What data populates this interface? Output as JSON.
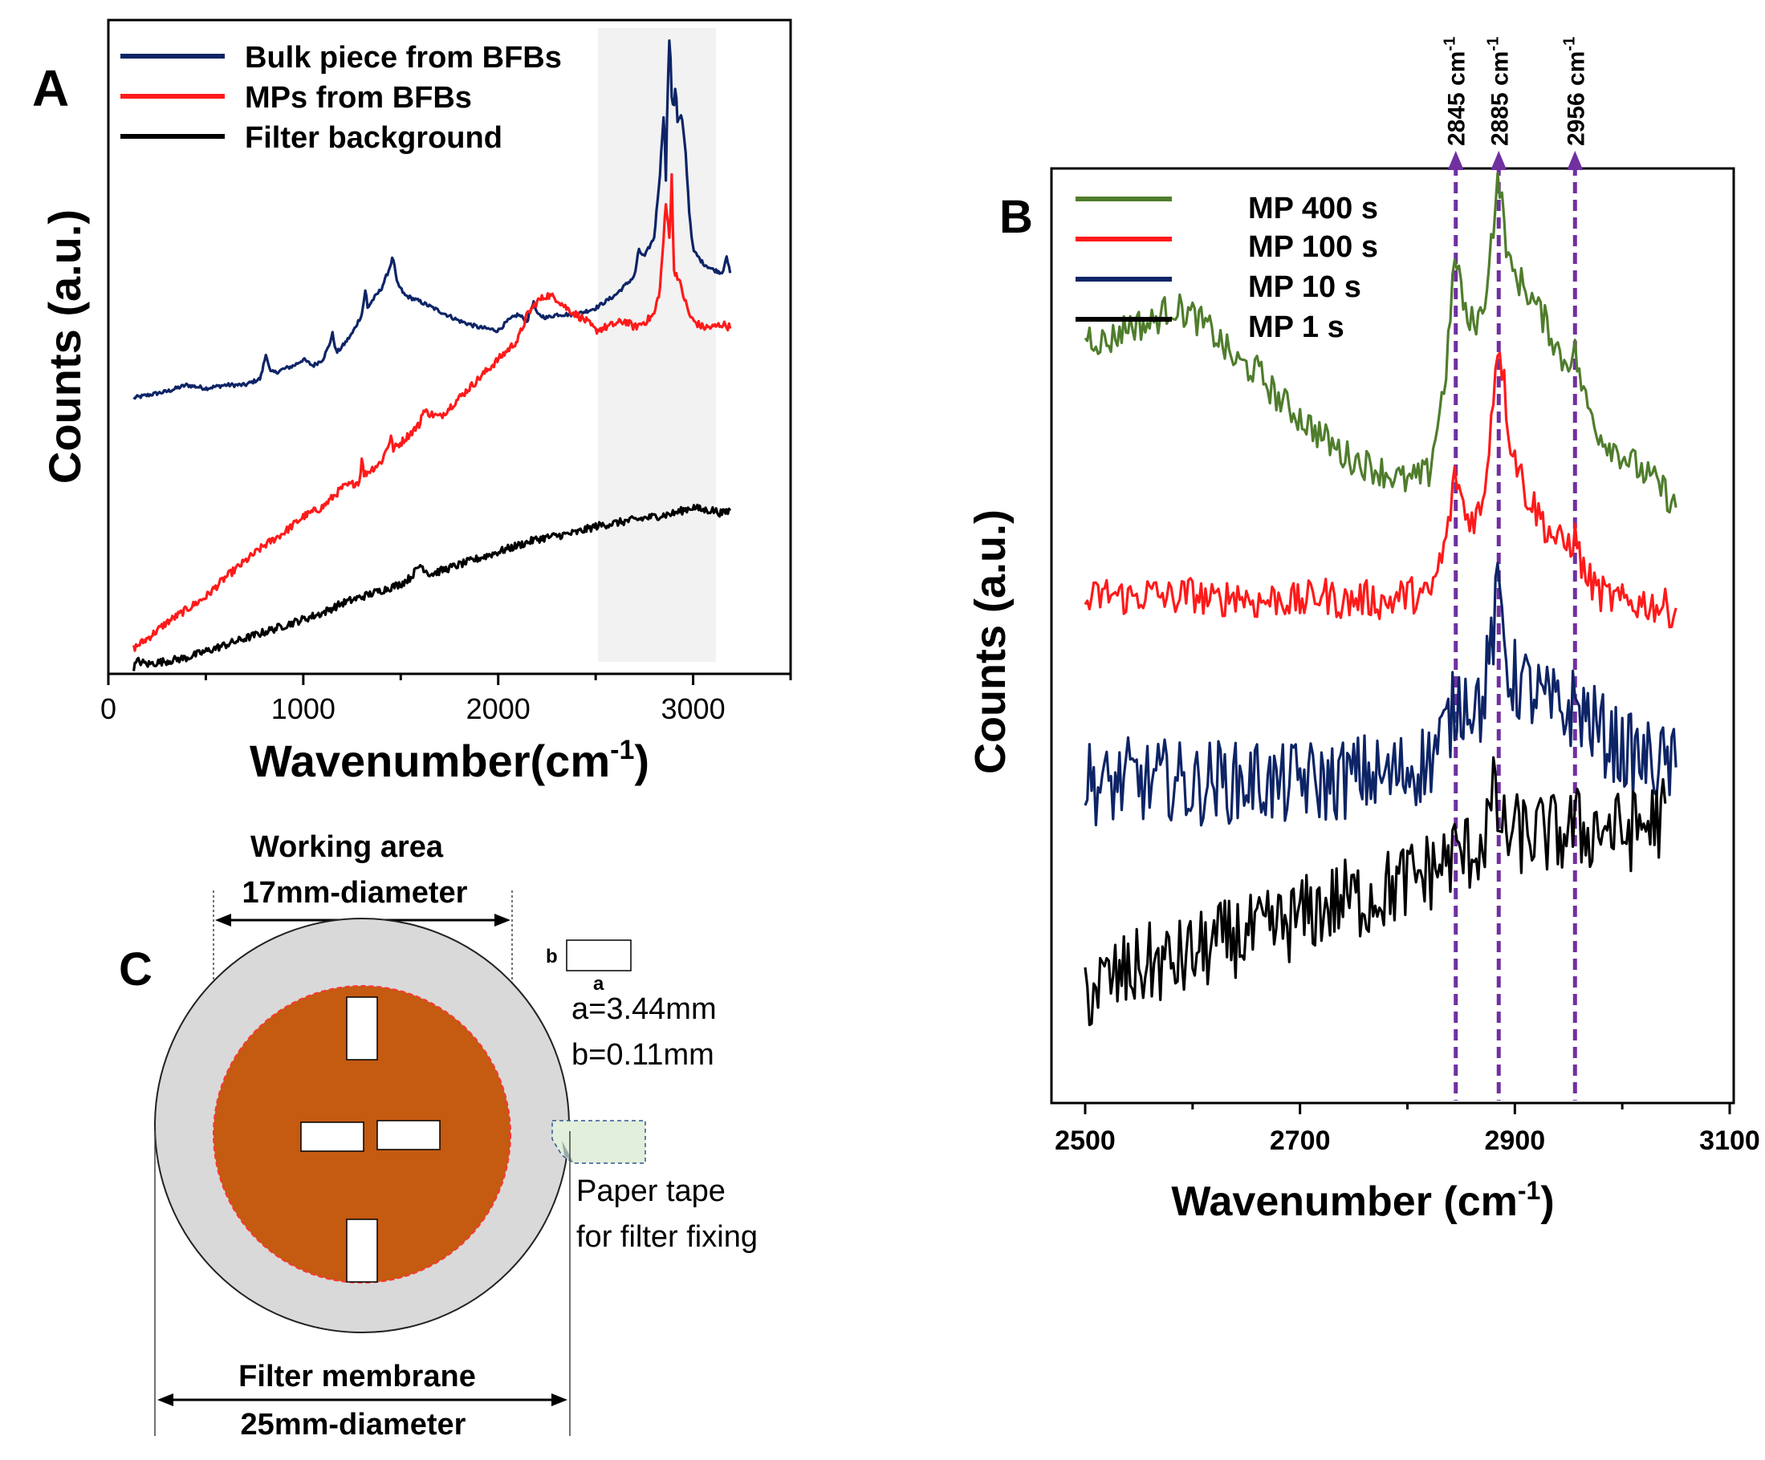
{
  "chart_data": [
    {
      "panel": "A",
      "type": "line",
      "xlabel": "Wavenumber(cm",
      "xlabel_sup": "-1",
      "xlabel_close": ")",
      "ylabel": "Counts  (a.u.)",
      "xlim": [
        0,
        3500
      ],
      "xticks": [
        0,
        1000,
        2000,
        3000
      ],
      "highlight_region": [
        2540,
        3140
      ],
      "legend_position": "top-left",
      "series": [
        {
          "name": "Bulk piece from BFBs",
          "color": "#0d2466",
          "x": [
            130,
            300,
            400,
            500,
            600,
            700,
            780,
            810,
            830,
            860,
            900,
            950,
            1000,
            1050,
            1100,
            1130,
            1150,
            1170,
            1200,
            1250,
            1300,
            1320,
            1330,
            1350,
            1400,
            1440,
            1460,
            1480,
            1520,
            1600,
            1700,
            1800,
            1900,
            2000,
            2050,
            2100,
            2150,
            2180,
            2200,
            2250,
            2300,
            2400,
            2500,
            2600,
            2700,
            2720,
            2750,
            2800,
            2830,
            2850,
            2860,
            2870,
            2880,
            2890,
            2900,
            2910,
            2920,
            2940,
            2960,
            2980,
            3000,
            3050,
            3100,
            3150,
            3170,
            3190
          ],
          "y": [
            0.43,
            0.44,
            0.45,
            0.445,
            0.45,
            0.45,
            0.46,
            0.5,
            0.47,
            0.47,
            0.475,
            0.48,
            0.49,
            0.48,
            0.49,
            0.51,
            0.53,
            0.5,
            0.51,
            0.53,
            0.56,
            0.6,
            0.57,
            0.58,
            0.6,
            0.63,
            0.65,
            0.61,
            0.59,
            0.58,
            0.565,
            0.55,
            0.54,
            0.535,
            0.55,
            0.56,
            0.55,
            0.58,
            0.56,
            0.555,
            0.56,
            0.56,
            0.57,
            0.59,
            0.62,
            0.66,
            0.65,
            0.68,
            0.78,
            0.88,
            0.77,
            0.92,
            1.0,
            0.9,
            0.88,
            0.92,
            0.86,
            0.87,
            0.82,
            0.72,
            0.66,
            0.64,
            0.63,
            0.625,
            0.65,
            0.625
          ]
        },
        {
          "name": "MPs from BFBs",
          "color": "#ff1a1a",
          "x": [
            130,
            200,
            300,
            400,
            500,
            600,
            700,
            800,
            900,
            1000,
            1100,
            1200,
            1290,
            1300,
            1310,
            1400,
            1440,
            1450,
            1460,
            1500,
            1600,
            1610,
            1700,
            1800,
            1900,
            2000,
            2100,
            2150,
            2200,
            2250,
            2300,
            2350,
            2400,
            2450,
            2500,
            2550,
            2600,
            2650,
            2700,
            2760,
            2800,
            2830,
            2860,
            2880,
            2890,
            2900,
            2920,
            2940,
            2960,
            2980,
            3000,
            3050,
            3100,
            3150,
            3190
          ],
          "y": [
            0.04,
            0.055,
            0.08,
            0.1,
            0.12,
            0.15,
            0.175,
            0.2,
            0.22,
            0.245,
            0.26,
            0.29,
            0.3,
            0.34,
            0.31,
            0.33,
            0.36,
            0.37,
            0.35,
            0.36,
            0.39,
            0.41,
            0.4,
            0.43,
            0.46,
            0.49,
            0.52,
            0.56,
            0.58,
            0.59,
            0.585,
            0.57,
            0.56,
            0.55,
            0.535,
            0.54,
            0.545,
            0.55,
            0.54,
            0.55,
            0.56,
            0.6,
            0.73,
            0.68,
            0.78,
            0.63,
            0.62,
            0.6,
            0.58,
            0.56,
            0.55,
            0.54,
            0.54,
            0.545,
            0.54
          ]
        },
        {
          "name": "Filter background",
          "color": "#000000",
          "x": [
            130,
            150,
            200,
            300,
            400,
            500,
            600,
            700,
            800,
            900,
            1000,
            1100,
            1200,
            1300,
            1400,
            1500,
            1550,
            1600,
            1650,
            1700,
            1800,
            1900,
            2000,
            2100,
            2200,
            2300,
            2400,
            2500,
            2600,
            2700,
            2800,
            2900,
            3000,
            3050,
            3100,
            3150,
            3190
          ],
          "y": [
            0.01,
            0.02,
            0.015,
            0.02,
            0.025,
            0.035,
            0.045,
            0.055,
            0.065,
            0.075,
            0.085,
            0.095,
            0.11,
            0.12,
            0.13,
            0.14,
            0.15,
            0.17,
            0.155,
            0.16,
            0.17,
            0.18,
            0.19,
            0.2,
            0.21,
            0.215,
            0.22,
            0.23,
            0.235,
            0.24,
            0.245,
            0.25,
            0.26,
            0.255,
            0.255,
            0.25,
            0.255
          ]
        }
      ]
    },
    {
      "panel": "B",
      "type": "line",
      "xlabel": "Wavenumber (cm",
      "xlabel_sup": "-1",
      "xlabel_close": ")",
      "ylabel": "Counts  (a.u.)",
      "xlim": [
        2500,
        3100
      ],
      "xticks": [
        2500,
        2700,
        2900,
        3100
      ],
      "legend_position": "top-left",
      "annotations": [
        {
          "x": 2845,
          "label": "2845 cm",
          "sup": "-1"
        },
        {
          "x": 2885,
          "label": "2885 cm",
          "sup": "-1"
        },
        {
          "x": 2956,
          "label": "2956 cm",
          "sup": "-1"
        }
      ],
      "series": [
        {
          "name": "MP 400 s",
          "color": "#4f7d2c",
          "x": [
            2500,
            2520,
            2540,
            2560,
            2580,
            2600,
            2620,
            2640,
            2660,
            2680,
            2700,
            2720,
            2740,
            2760,
            2780,
            2800,
            2820,
            2835,
            2845,
            2855,
            2870,
            2885,
            2895,
            2910,
            2930,
            2945,
            2956,
            2965,
            2980,
            3000,
            3020,
            3040,
            3050
          ],
          "y": [
            0.83,
            0.82,
            0.84,
            0.84,
            0.86,
            0.85,
            0.83,
            0.8,
            0.79,
            0.76,
            0.74,
            0.72,
            0.7,
            0.69,
            0.68,
            0.67,
            0.68,
            0.78,
            0.92,
            0.84,
            0.85,
            1.0,
            0.9,
            0.88,
            0.84,
            0.8,
            0.81,
            0.76,
            0.72,
            0.7,
            0.68,
            0.66,
            0.64
          ]
        },
        {
          "name": "MP 100 s",
          "color": "#ff1a1a",
          "x": [
            2500,
            2520,
            2540,
            2560,
            2580,
            2600,
            2620,
            2640,
            2660,
            2680,
            2700,
            2720,
            2740,
            2760,
            2780,
            2800,
            2820,
            2835,
            2845,
            2855,
            2870,
            2885,
            2895,
            2910,
            2930,
            2945,
            2956,
            2965,
            2980,
            3000,
            3020,
            3040,
            3050
          ],
          "y": [
            0.54,
            0.55,
            0.545,
            0.55,
            0.545,
            0.55,
            0.54,
            0.55,
            0.54,
            0.545,
            0.54,
            0.55,
            0.54,
            0.545,
            0.54,
            0.55,
            0.545,
            0.6,
            0.68,
            0.63,
            0.64,
            0.83,
            0.72,
            0.66,
            0.62,
            0.6,
            0.61,
            0.57,
            0.55,
            0.54,
            0.54,
            0.535,
            0.53
          ]
        },
        {
          "name": "MP 10 s",
          "color": "#0d2466",
          "x": [
            2500,
            2520,
            2540,
            2560,
            2580,
            2600,
            2620,
            2640,
            2660,
            2680,
            2700,
            2720,
            2740,
            2760,
            2780,
            2800,
            2820,
            2835,
            2845,
            2855,
            2870,
            2885,
            2895,
            2910,
            2930,
            2945,
            2956,
            2965,
            2980,
            3000,
            3020,
            3040,
            3050
          ],
          "y": [
            0.35,
            0.34,
            0.35,
            0.345,
            0.35,
            0.34,
            0.35,
            0.345,
            0.35,
            0.34,
            0.35,
            0.345,
            0.35,
            0.355,
            0.35,
            0.36,
            0.37,
            0.4,
            0.43,
            0.44,
            0.43,
            0.55,
            0.46,
            0.45,
            0.43,
            0.42,
            0.43,
            0.42,
            0.4,
            0.38,
            0.37,
            0.365,
            0.36
          ]
        },
        {
          "name": "MP 1 s",
          "color": "#000000",
          "x": [
            2500,
            2520,
            2540,
            2560,
            2580,
            2600,
            2620,
            2640,
            2660,
            2680,
            2700,
            2720,
            2740,
            2760,
            2780,
            2800,
            2820,
            2835,
            2845,
            2855,
            2870,
            2880,
            2890,
            2900,
            2920,
            2945,
            2956,
            2965,
            2980,
            3000,
            3020,
            3040
          ],
          "y": [
            0.12,
            0.13,
            0.14,
            0.15,
            0.15,
            0.16,
            0.17,
            0.18,
            0.18,
            0.19,
            0.2,
            0.21,
            0.22,
            0.22,
            0.23,
            0.24,
            0.25,
            0.26,
            0.27,
            0.27,
            0.28,
            0.33,
            0.29,
            0.29,
            0.29,
            0.29,
            0.3,
            0.29,
            0.3,
            0.29,
            0.3,
            0.31
          ]
        }
      ]
    }
  ],
  "panels": {
    "a_label": "A",
    "b_label": "B",
    "c_label": "C"
  },
  "diagram_c": {
    "working_area_line1": "Working area",
    "working_area_line2": "17mm-diameter",
    "rect_side_b": "b",
    "rect_side_a": "a",
    "a_value": "a=3.44mm",
    "b_value": "b=0.11mm",
    "tape_line1": "Paper tape",
    "tape_line2": "for filter fixing",
    "filter_line1": "Filter membrane",
    "filter_line2": "25mm-diameter",
    "colors": {
      "membrane": "#d9d9d9",
      "working_area": "#c55a11",
      "tape": "#e2efda"
    }
  }
}
